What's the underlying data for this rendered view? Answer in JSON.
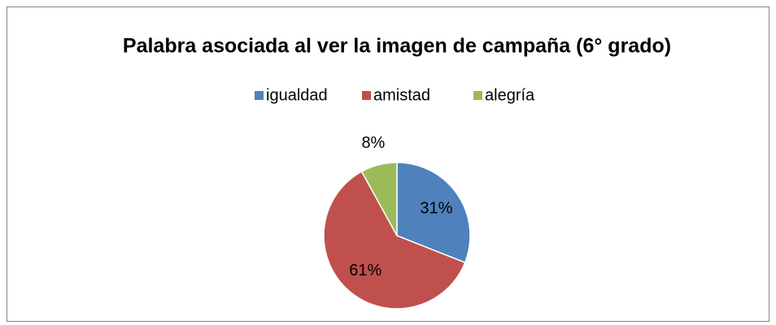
{
  "chart_data": {
    "type": "pie",
    "title": "Palabra asociada al ver la imagen de campaña (6° grado)",
    "categories": [
      "igualdad",
      "amistad",
      "alegría"
    ],
    "values": [
      31,
      61,
      8
    ],
    "value_labels": [
      "31%",
      "61%",
      "8%"
    ],
    "colors": [
      "#4f81bd",
      "#c0504d",
      "#9bbb59"
    ],
    "legend": "top"
  }
}
